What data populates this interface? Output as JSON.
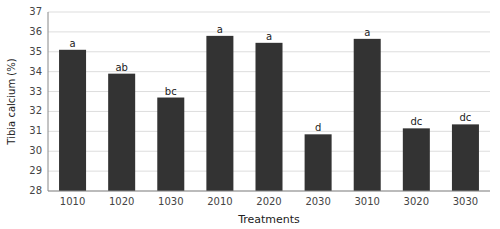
{
  "chart_data": {
    "type": "bar",
    "categories": [
      "1010",
      "1020",
      "1030",
      "2010",
      "2020",
      "2030",
      "3010",
      "3020",
      "3030"
    ],
    "values": [
      35.1,
      33.9,
      32.7,
      35.8,
      35.45,
      30.85,
      35.65,
      31.15,
      31.35
    ],
    "annotations": [
      "a",
      "ab",
      "bc",
      "a",
      "a",
      "d",
      "a",
      "dc",
      "dc"
    ],
    "color": "#333333",
    "xlabel": "Treatments",
    "ylabel": "Tibia calcium (%)",
    "ylim": [
      28,
      37
    ],
    "yticks": [
      28,
      29,
      30,
      31,
      32,
      33,
      34,
      35,
      36,
      37
    ],
    "grid": true
  }
}
